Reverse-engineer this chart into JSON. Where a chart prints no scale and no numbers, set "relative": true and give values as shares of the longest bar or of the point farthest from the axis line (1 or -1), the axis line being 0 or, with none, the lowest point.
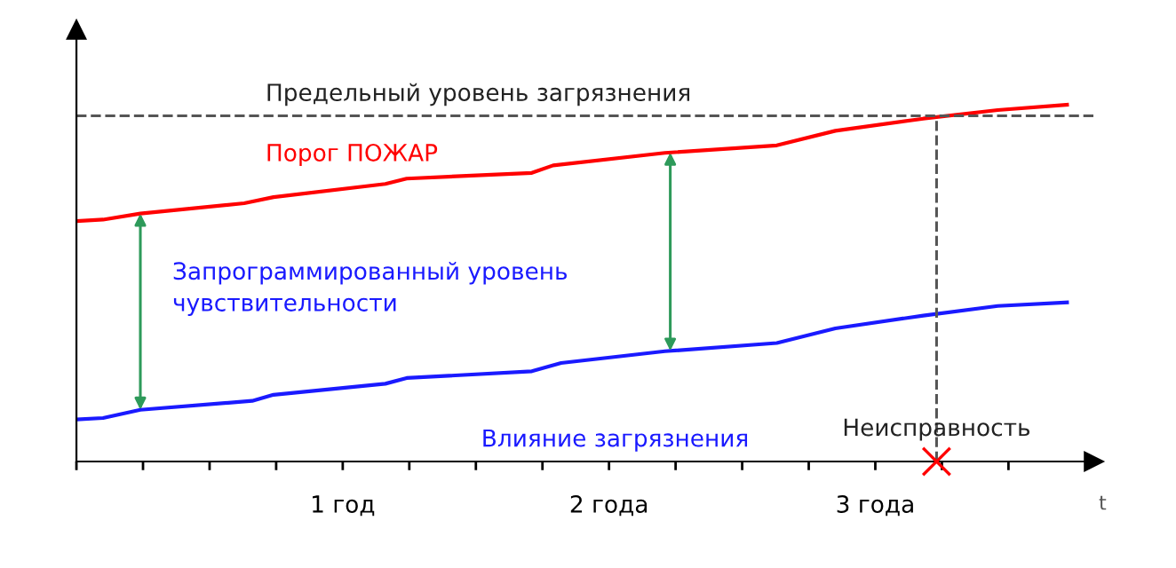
{
  "chart_data": {
    "type": "line",
    "relative": true,
    "xlabel": "t",
    "xlim": [
      0,
      3.82
    ],
    "xticks": [
      {
        "value": 0,
        "label": null
      },
      {
        "value": 0.25,
        "label": null
      },
      {
        "value": 0.5,
        "label": null
      },
      {
        "value": 0.75,
        "label": null
      },
      {
        "value": 1,
        "label": "1 год"
      },
      {
        "value": 1.25,
        "label": null
      },
      {
        "value": 1.5,
        "label": null
      },
      {
        "value": 1.75,
        "label": null
      },
      {
        "value": 2,
        "label": "2 года"
      },
      {
        "value": 2.25,
        "label": null
      },
      {
        "value": 2.5,
        "label": null
      },
      {
        "value": 2.75,
        "label": null
      },
      {
        "value": 3,
        "label": "3 года"
      },
      {
        "value": 3.25,
        "label": null
      },
      {
        "value": 3.5,
        "label": null
      }
    ],
    "series": [
      {
        "name": "Порог ПОЖАР",
        "color": "#ff0000",
        "x": [
          0,
          0.1,
          0.24,
          0.63,
          0.74,
          1.16,
          1.24,
          1.71,
          1.79,
          2.21,
          2.63,
          2.85,
          3.18,
          3.46,
          3.72
        ],
        "values": [
          0.674,
          0.678,
          0.695,
          0.724,
          0.741,
          0.778,
          0.793,
          0.809,
          0.83,
          0.865,
          0.886,
          0.927,
          0.961,
          0.985,
          1.0
        ]
      },
      {
        "name": "Влияние загрязнения",
        "color": "#1a1aff",
        "x": [
          0,
          0.1,
          0.24,
          0.66,
          0.74,
          1.16,
          1.24,
          1.71,
          1.82,
          2.21,
          2.63,
          2.85,
          3.18,
          3.46,
          3.72
        ],
        "values": [
          0.118,
          0.122,
          0.145,
          0.17,
          0.187,
          0.218,
          0.234,
          0.253,
          0.276,
          0.309,
          0.332,
          0.373,
          0.409,
          0.436,
          0.446
        ]
      }
    ],
    "ref_lines": [
      {
        "axis": "y",
        "value": 0.969,
        "label": "Предельный уровень загрязнения",
        "color": "#555555",
        "line_style": "dashed"
      },
      {
        "axis": "x",
        "value": 3.23,
        "label": "Неисправность",
        "color": "#555555",
        "line_style": "dashed"
      }
    ],
    "annotations": [
      "Запрограммированный уровень\nчувствительности"
    ],
    "grid": false,
    "legend": false,
    "marker": "none",
    "line_style": "solid"
  }
}
